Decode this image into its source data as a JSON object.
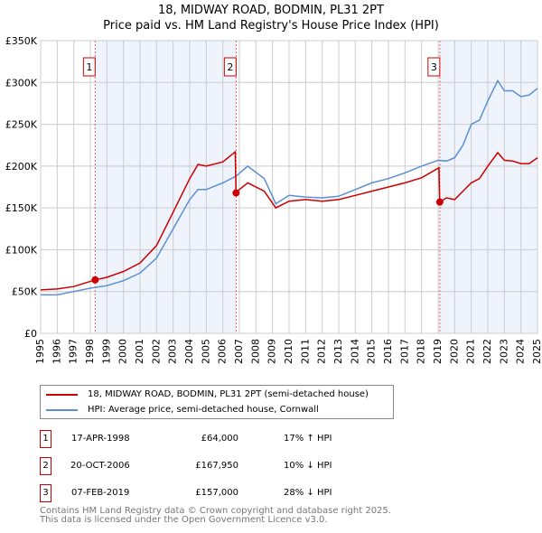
{
  "chart_data": {
    "type": "line",
    "title": "18, MIDWAY ROAD, BODMIN, PL31 2PT",
    "subtitle": "Price paid vs. HM Land Registry's House Price Index (HPI)",
    "xlim": [
      1995,
      2025
    ],
    "ylim": [
      0,
      350000
    ],
    "x_ticks": [
      "1995",
      "1996",
      "1997",
      "1998",
      "1999",
      "2000",
      "2001",
      "2002",
      "2003",
      "2004",
      "2005",
      "2006",
      "2007",
      "2008",
      "2009",
      "2010",
      "2011",
      "2012",
      "2013",
      "2014",
      "2015",
      "2016",
      "2017",
      "2018",
      "2019",
      "2020",
      "2021",
      "2022",
      "2023",
      "2024",
      "2025"
    ],
    "y_ticks": [
      {
        "v": 0,
        "label": "£0"
      },
      {
        "v": 50000,
        "label": "£50K"
      },
      {
        "v": 100000,
        "label": "£100K"
      },
      {
        "v": 150000,
        "label": "£150K"
      },
      {
        "v": 200000,
        "label": "£200K"
      },
      {
        "v": 250000,
        "label": "£250K"
      },
      {
        "v": 300000,
        "label": "£300K"
      },
      {
        "v": 350000,
        "label": "£350K"
      }
    ],
    "grid": true,
    "series": [
      {
        "name": "18, MIDWAY ROAD, BODMIN, PL31 2PT (semi-detached house)",
        "color": "#cc0000",
        "x": [
          1995,
          1996,
          1997,
          1998.29,
          1999,
          2000,
          2001,
          2002,
          2003,
          2004,
          2004.5,
          2005,
          2006,
          2006.75,
          2006.8,
          2007,
          2007.5,
          2008.5,
          2009.2,
          2010,
          2011,
          2012,
          2013,
          2014,
          2015,
          2016,
          2017,
          2018,
          2019.05,
          2019.1,
          2019.5,
          2020,
          2020.5,
          2021,
          2021.5,
          2022,
          2022.6,
          2023,
          2023.5,
          2024,
          2024.5,
          2025
        ],
        "y": [
          52000,
          53000,
          56000,
          64000,
          67000,
          74000,
          84000,
          105000,
          145000,
          185000,
          202000,
          200000,
          205000,
          217000,
          167950,
          172000,
          180000,
          170000,
          150000,
          158000,
          160000,
          158000,
          160000,
          165000,
          170000,
          175000,
          180000,
          186000,
          198000,
          157000,
          162000,
          160000,
          170000,
          180000,
          185000,
          200000,
          216000,
          207000,
          206000,
          203000,
          203000,
          210000
        ]
      },
      {
        "name": "HPI: Average price, semi-detached house, Cornwall",
        "color": "#5b8fd4",
        "x": [
          1995,
          1996,
          1997,
          1998,
          1999,
          2000,
          2001,
          2002,
          2003,
          2004,
          2004.5,
          2005,
          2006,
          2006.8,
          2007.5,
          2008.5,
          2009.2,
          2010,
          2011,
          2012,
          2013,
          2014,
          2015,
          2016,
          2017,
          2018,
          2019,
          2019.5,
          2020,
          2020.5,
          2021,
          2021.5,
          2022,
          2022.6,
          2023,
          2023.5,
          2024,
          2024.5,
          2025
        ],
        "y": [
          46000,
          46000,
          50000,
          54000,
          57000,
          63000,
          72000,
          90000,
          125000,
          160000,
          172000,
          172000,
          180000,
          188000,
          200000,
          185000,
          155000,
          165000,
          163000,
          162000,
          164000,
          172000,
          180000,
          185000,
          192000,
          200000,
          207000,
          206000,
          210000,
          225000,
          250000,
          255000,
          278000,
          302000,
          290000,
          290000,
          283000,
          285000,
          293000
        ]
      }
    ],
    "sales": [
      {
        "label": "1",
        "x": 1998.29,
        "y": 64000,
        "date": "17-APR-1998",
        "price": "£64,000",
        "hpi": "17% ↑ HPI"
      },
      {
        "label": "2",
        "x": 2006.8,
        "y": 167950,
        "date": "20-OCT-2006",
        "price": "£167,950",
        "hpi": "10% ↓ HPI"
      },
      {
        "label": "3",
        "x": 2019.1,
        "y": 157000,
        "date": "07-FEB-2019",
        "price": "£157,000",
        "hpi": "28% ↓ HPI"
      }
    ],
    "legend_placement": "bottom"
  },
  "footer": {
    "line1": "Contains HM Land Registry data © Crown copyright and database right 2025.",
    "line2": "This data is licensed under the Open Government Licence v3.0."
  }
}
